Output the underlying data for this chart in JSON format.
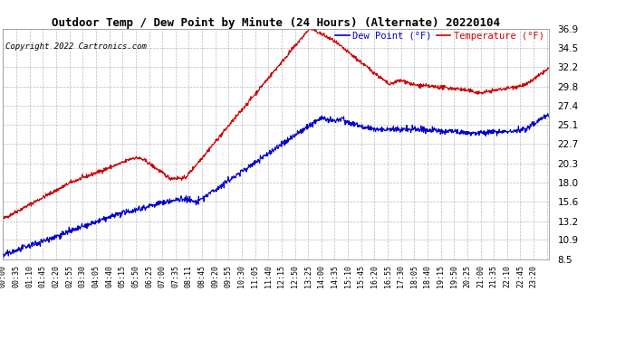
{
  "title": "Outdoor Temp / Dew Point by Minute (24 Hours) (Alternate) 20220104",
  "copyright": "Copyright 2022 Cartronics.com",
  "legend_dew": "Dew Point (°F)",
  "legend_temp": "Temperature (°F)",
  "bg_color": "#ffffff",
  "plot_bg_color": "#ffffff",
  "grid_color": "#aaaaaa",
  "temp_color": "#cc0000",
  "dew_color": "#0000cc",
  "ylim": [
    8.5,
    36.9
  ],
  "yticks": [
    8.5,
    10.9,
    13.2,
    15.6,
    18.0,
    20.3,
    22.7,
    25.1,
    27.4,
    29.8,
    32.2,
    34.5,
    36.9
  ],
  "num_points": 1441,
  "x_tick_interval": 35,
  "x_tick_labels": [
    "00:00",
    "00:35",
    "01:10",
    "01:45",
    "02:20",
    "02:55",
    "03:30",
    "04:05",
    "04:40",
    "05:15",
    "05:50",
    "06:25",
    "07:00",
    "07:35",
    "08:11",
    "08:45",
    "09:20",
    "09:55",
    "10:30",
    "11:05",
    "11:40",
    "12:15",
    "12:50",
    "13:25",
    "14:00",
    "14:35",
    "15:10",
    "15:45",
    "16:20",
    "16:55",
    "17:30",
    "18:05",
    "18:40",
    "19:15",
    "19:50",
    "20:25",
    "21:00",
    "21:35",
    "22:10",
    "22:45",
    "23:20"
  ],
  "line_width": 0.8,
  "title_fontsize": 9,
  "copyright_fontsize": 6.5,
  "legend_fontsize": 7.5,
  "xtick_fontsize": 6,
  "ytick_fontsize": 7.5
}
